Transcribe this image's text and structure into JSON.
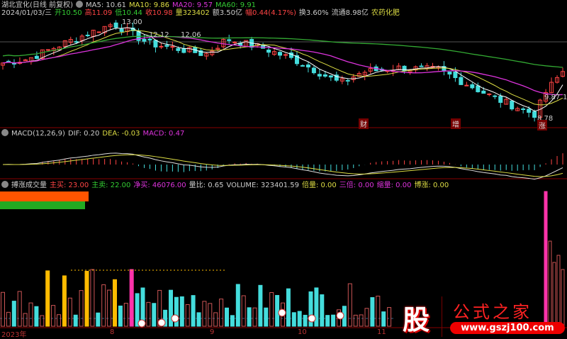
{
  "header": {
    "title": "湖北宜化(日线 前复权)",
    "ma5": "MA5: 10.61",
    "ma10": "MA10: 9.86",
    "ma20": "MA20: 9.57",
    "ma60": "MA60: 9.91",
    "date": "2024/01/03/三",
    "open": "开10.50",
    "high": "高11.09",
    "low": "低10.44",
    "close": "收10.98",
    "vol": "量323402",
    "amount": "额3.50亿",
    "change": "幅0.44(4.17%)",
    "turnover": "换3.60%",
    "float": "流通8.98亿",
    "sector": "农药化肥"
  },
  "price_annotations": {
    "high": "13.00",
    "mid1": "12.12",
    "mid2": "12.06",
    "right": "9.87",
    "right2": "1",
    "low": "8.78"
  },
  "tags": {
    "t1": "财",
    "t2": "增",
    "t3": "涨"
  },
  "macd": {
    "title": "MACD(12,26,9)",
    "dif": "DIF: 0.20",
    "dea": "DEA: -0.03",
    "macd": "MACD: 0.47"
  },
  "volume_panel": {
    "title": "搏涨成交量",
    "zhumai": "主买: 23.00",
    "zhumai2": "主卖: 22.00",
    "jingmai": "净买: 46076.00",
    "liangbi": "量比: 0.65",
    "volume": "VOLUME: 323401.59",
    "beiliang": "倍量: 0.00",
    "sanbei": "三倍: 0.00",
    "suoliang": "缩量: 0.00",
    "bozhang": "博涨: 0.00"
  },
  "axis": {
    "labels": [
      "2023年",
      "8",
      "9",
      "10",
      "11"
    ]
  },
  "logo": {
    "char": "股",
    "text": "公式之家",
    "url": "www.gszj100.com"
  },
  "colors": {
    "up": "#ff4444",
    "down": "#44dddd",
    "ma5": "#ffffff",
    "ma10": "#dddd44",
    "ma20": "#dd33dd",
    "ma60": "#33aa33"
  }
}
